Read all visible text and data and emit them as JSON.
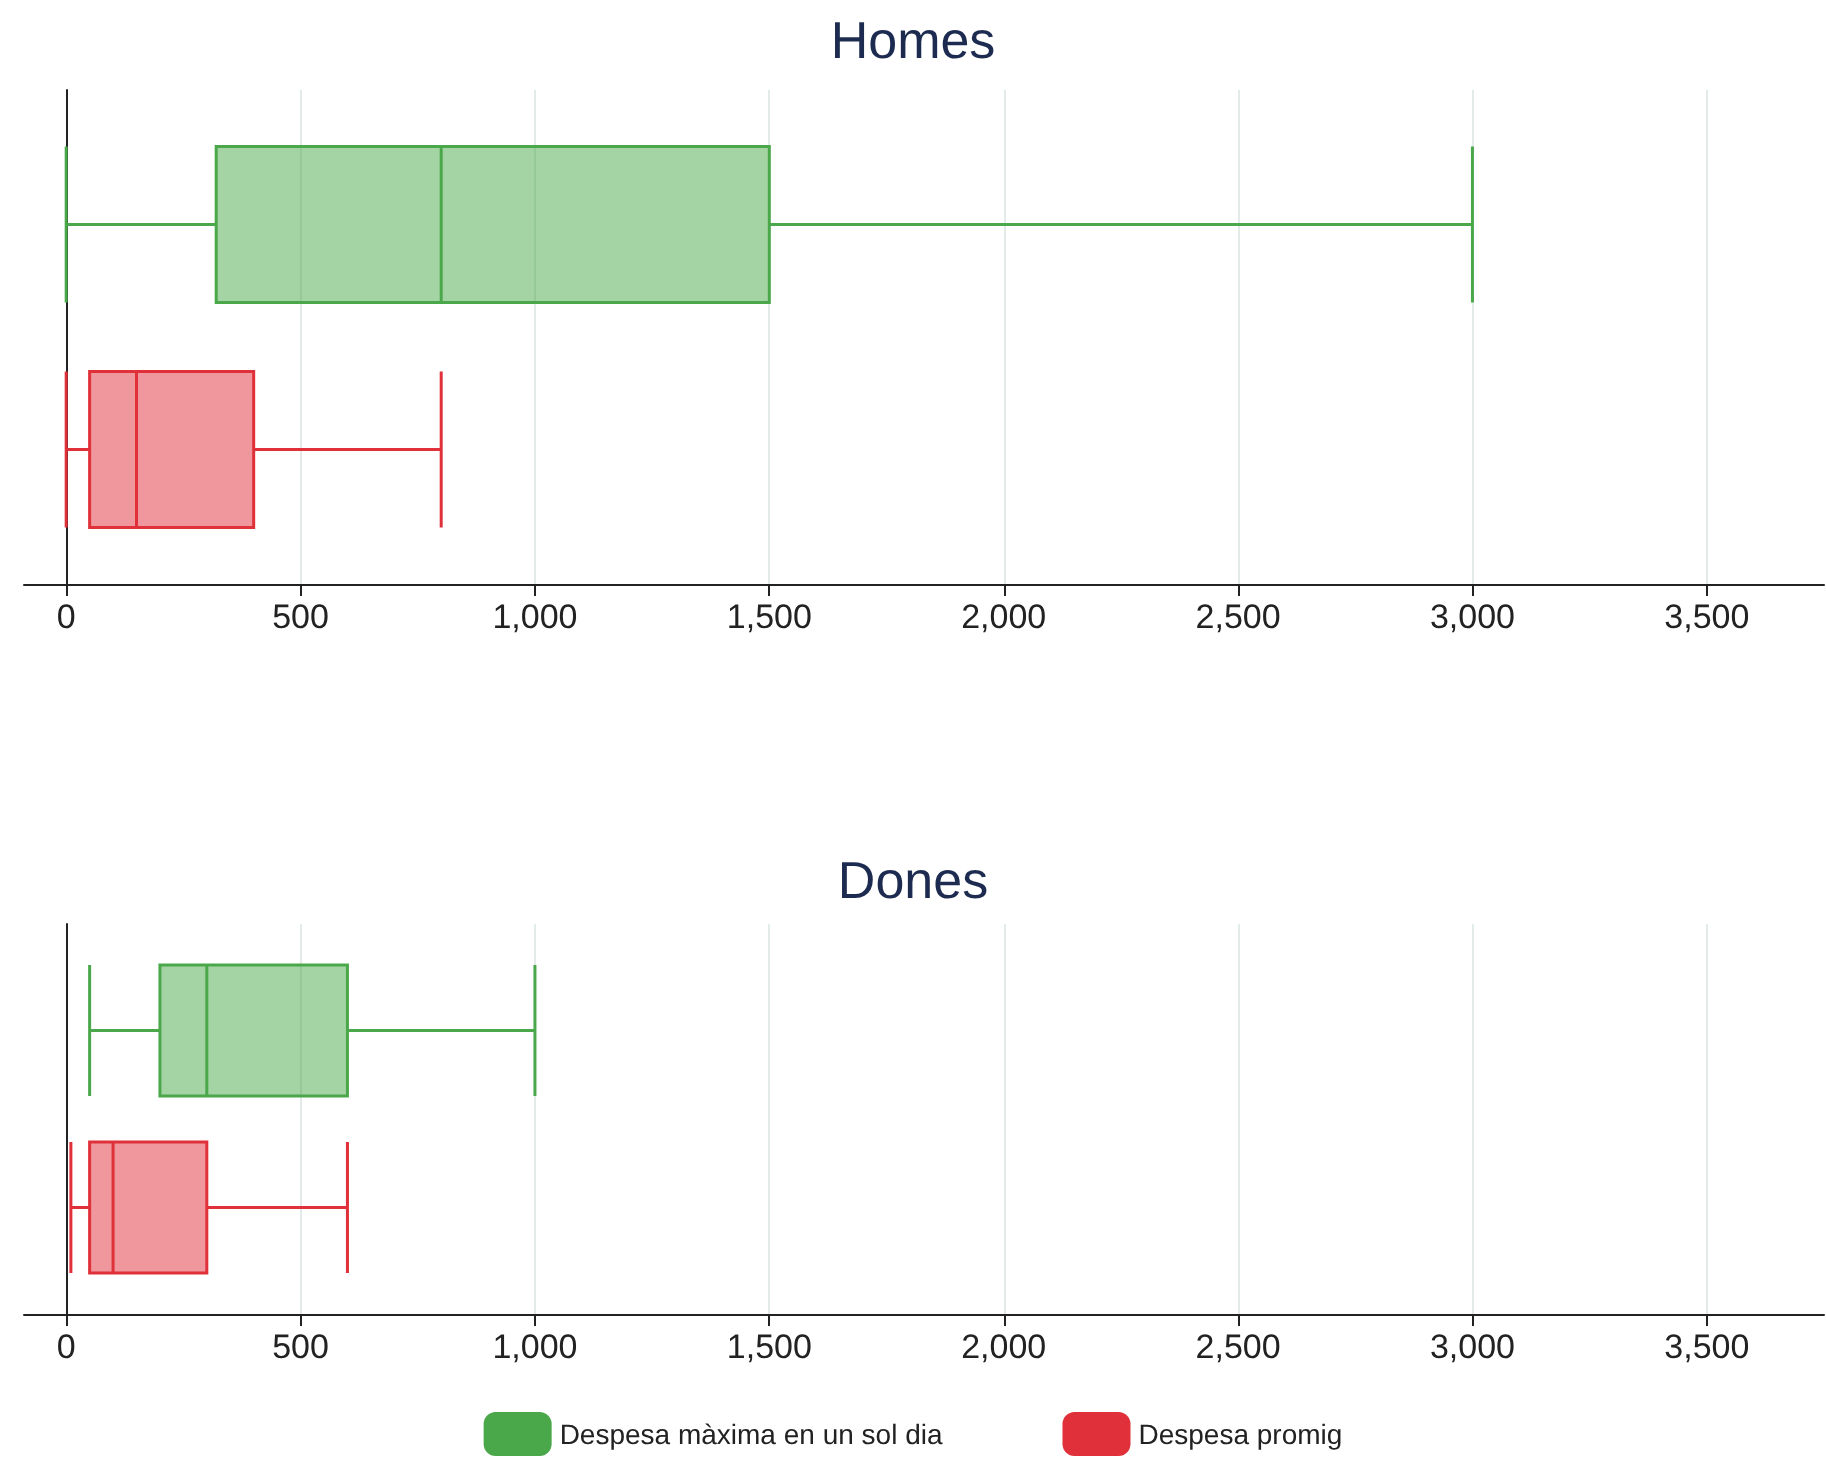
{
  "chart_data": [
    {
      "type": "box",
      "title": "Homes",
      "orientation": "horizontal",
      "categories": [
        null
      ],
      "series": [
        {
          "color": "#4aa84a",
          "boxes": [
            {
              "low": 0,
              "q1": 320,
              "median": 800,
              "q3": 1500,
              "high": 3000
            }
          ]
        },
        {
          "color": "#e0303a",
          "boxes": [
            {
              "low": 0,
              "q1": 50,
              "median": 150,
              "q3": 400,
              "high": 800
            }
          ]
        }
      ],
      "xlim": [
        -90,
        3750
      ],
      "xticks": [
        {
          "value": 0,
          "label": "0"
        },
        {
          "value": 500,
          "label": "500"
        },
        {
          "value": 1000,
          "label": "1,000"
        },
        {
          "value": 1500,
          "label": "1,500"
        },
        {
          "value": 2000,
          "label": "2,000"
        },
        {
          "value": 2500,
          "label": "2,500"
        },
        {
          "value": 3000,
          "label": "3,000"
        },
        {
          "value": 3500,
          "label": "3,500"
        }
      ],
      "grid": "x",
      "tick_labels": "x"
    },
    {
      "type": "box",
      "title": "Dones",
      "orientation": "horizontal",
      "categories": [
        null
      ],
      "series": [
        {
          "name": "Despesa màxima en un sol dia",
          "color": "#4aa84a",
          "boxes": [
            {
              "low": 50,
              "q1": 200,
              "median": 300,
              "q3": 600,
              "high": 1000
            }
          ]
        },
        {
          "name": "Despesa promig",
          "color": "#e0303a",
          "boxes": [
            {
              "low": 10,
              "q1": 50,
              "median": 100,
              "q3": 300,
              "high": 600
            }
          ]
        }
      ],
      "xlim": [
        -90,
        3750
      ],
      "xticks": [
        {
          "value": 0,
          "label": "0"
        },
        {
          "value": 500,
          "label": "500"
        },
        {
          "value": 1000,
          "label": "1,000"
        },
        {
          "value": 1500,
          "label": "1,500"
        },
        {
          "value": 2000,
          "label": "2,000"
        },
        {
          "value": 2500,
          "label": "2,500"
        },
        {
          "value": 3000,
          "label": "3,000"
        },
        {
          "value": 3500,
          "label": "3,500"
        }
      ],
      "grid": "x",
      "tick_labels": "x",
      "legend": "bottom"
    }
  ]
}
